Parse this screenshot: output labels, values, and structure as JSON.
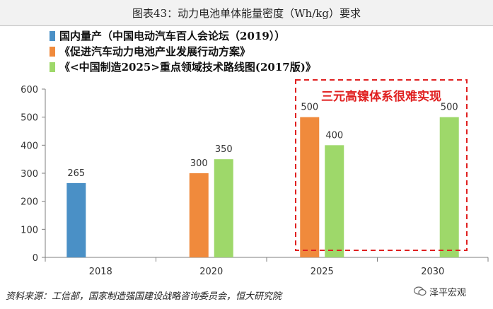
{
  "figure_title": "图表43：动力电池单体能量密度（Wh/kg）要求",
  "source_note": "资料来源：工信部，国家制造强国建设战略咨询委员会，恒大研究院",
  "watermark": "泽平宏观",
  "colors": {
    "series1": "#4a90c6",
    "series2": "#f08a3c",
    "series3": "#9ed86a",
    "annotation": "#e02020",
    "axis": "#7f7f7f"
  },
  "chart_data": {
    "type": "bar",
    "categories": [
      "2018",
      "2020",
      "2025",
      "2030"
    ],
    "series": [
      {
        "name": "国内量产（中国电动汽车百人会论坛（2019））",
        "values": [
          265,
          null,
          null,
          null
        ]
      },
      {
        "name": "《促进汽车动力电池产业发展行动方案》",
        "values": [
          null,
          300,
          500,
          null
        ]
      },
      {
        "name": "《<中国制造2025>重点领域技术路线图(2017版)》",
        "values": [
          null,
          350,
          400,
          500
        ]
      }
    ],
    "y_ticks": [
      "0",
      "100",
      "200",
      "300",
      "400",
      "500",
      "600"
    ],
    "ylim": [
      0,
      600
    ],
    "grid": false,
    "legend_position": "top-left",
    "annotation": "三元高镍体系很难实现"
  }
}
